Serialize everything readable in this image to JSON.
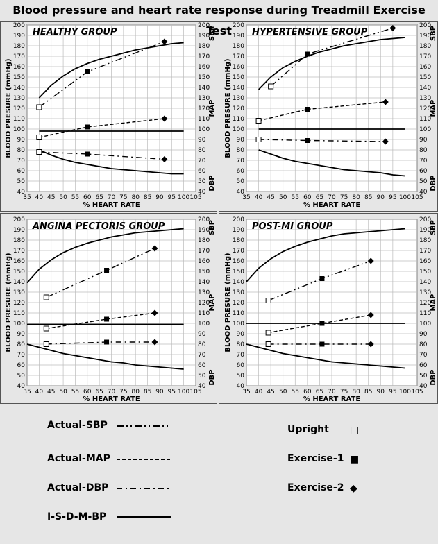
{
  "title": "Blood pressure and heart rate response during Treadmill Exercise Test",
  "colors": {
    "background": "#e6e6e6",
    "ink": "#000000"
  },
  "legend": {
    "lines": [
      {
        "label": "Actual-SBP",
        "dash": "dash-dot-dot"
      },
      {
        "label": "Actual-MAP",
        "dash": "dashed"
      },
      {
        "label": "Actual-DBP",
        "dash": "dash-dot"
      },
      {
        "label": "I-S-D-M-BP",
        "dash": "solid"
      }
    ],
    "markers": [
      {
        "label": "Upright",
        "symbol": "□"
      },
      {
        "label": "Exercise-1",
        "symbol": "■"
      },
      {
        "label": "Exercise-2",
        "symbol": "◆"
      }
    ]
  },
  "chart_data": [
    {
      "type": "line",
      "title": "HEALTHY GROUP",
      "xlabel": "% HEART RATE",
      "ylabel": "BLOOD PRESURE (mmHg)",
      "right_labels": [
        "SBP",
        "MAP",
        "DBP"
      ],
      "xlim": [
        35,
        105
      ],
      "ylim": [
        40,
        200
      ],
      "xticks": [
        35,
        40,
        45,
        50,
        55,
        60,
        65,
        70,
        75,
        80,
        85,
        90,
        95,
        100,
        105
      ],
      "yticks": [
        40,
        50,
        60,
        70,
        80,
        90,
        100,
        110,
        120,
        130,
        140,
        150,
        160,
        170,
        180,
        190,
        200
      ],
      "ideal": {
        "sbp": {
          "x": [
            40,
            45,
            50,
            55,
            60,
            65,
            70,
            75,
            80,
            85,
            90,
            95,
            100
          ],
          "y": [
            130,
            142,
            151,
            158,
            163,
            167,
            170,
            173,
            176,
            178,
            180,
            182,
            183
          ]
        },
        "map": {
          "x": [
            40,
            100
          ],
          "y": [
            98,
            98
          ]
        },
        "dbp": {
          "x": [
            40,
            45,
            50,
            55,
            60,
            65,
            70,
            75,
            80,
            85,
            90,
            95,
            100
          ],
          "y": [
            80,
            75,
            71,
            68,
            66,
            64,
            62,
            61,
            60,
            59,
            58,
            57,
            57
          ]
        }
      },
      "actual": {
        "sbp": {
          "x": [
            40,
            60,
            92
          ],
          "y": [
            121,
            155,
            184
          ]
        },
        "map": {
          "x": [
            40,
            60,
            92
          ],
          "y": [
            92,
            102,
            110
          ]
        },
        "dbp": {
          "x": [
            40,
            60,
            92
          ],
          "y": [
            78,
            76,
            71
          ]
        }
      }
    },
    {
      "type": "line",
      "title": "HYPERTENSIVE GROUP",
      "xlabel": "% HEART RATE",
      "ylabel": "BLOOD PRESURE (mmHg)",
      "right_labels": [
        "SBP",
        "MAP",
        "DBP"
      ],
      "xlim": [
        35,
        105
      ],
      "ylim": [
        40,
        200
      ],
      "xticks": [
        35,
        40,
        45,
        50,
        55,
        60,
        65,
        70,
        75,
        80,
        85,
        90,
        95,
        100,
        105
      ],
      "yticks": [
        40,
        50,
        60,
        70,
        80,
        90,
        100,
        110,
        120,
        130,
        140,
        150,
        160,
        170,
        180,
        190,
        200
      ],
      "ideal": {
        "sbp": {
          "x": [
            40,
            45,
            50,
            55,
            60,
            65,
            70,
            75,
            80,
            85,
            90,
            95,
            100
          ],
          "y": [
            138,
            150,
            159,
            165,
            170,
            174,
            177,
            180,
            182,
            184,
            186,
            187,
            188
          ]
        },
        "map": {
          "x": [
            40,
            100
          ],
          "y": [
            100,
            100
          ]
        },
        "dbp": {
          "x": [
            40,
            45,
            50,
            55,
            60,
            65,
            70,
            75,
            80,
            85,
            90,
            95,
            100
          ],
          "y": [
            80,
            76,
            72,
            69,
            67,
            65,
            63,
            61,
            60,
            59,
            58,
            56,
            55
          ]
        }
      },
      "actual": {
        "sbp": {
          "x": [
            45,
            60,
            95
          ],
          "y": [
            141,
            172,
            197
          ]
        },
        "map": {
          "x": [
            40,
            60,
            92
          ],
          "y": [
            108,
            119,
            126
          ]
        },
        "dbp": {
          "x": [
            40,
            60,
            92
          ],
          "y": [
            90,
            89,
            88
          ]
        }
      }
    },
    {
      "type": "line",
      "title": "ANGINA PECTORIS GROUP",
      "xlabel": "% HEART RATE",
      "ylabel": "BLOOD PRESURE (mmHg)",
      "right_labels": [
        "SBP",
        "MAP",
        "DBP"
      ],
      "xlim": [
        35,
        105
      ],
      "ylim": [
        40,
        200
      ],
      "xticks": [
        35,
        40,
        45,
        50,
        55,
        60,
        65,
        70,
        75,
        80,
        85,
        90,
        95,
        100,
        105
      ],
      "yticks": [
        40,
        50,
        60,
        70,
        80,
        90,
        100,
        110,
        120,
        130,
        140,
        150,
        160,
        170,
        180,
        190,
        200
      ],
      "ideal": {
        "sbp": {
          "x": [
            35,
            40,
            45,
            50,
            55,
            60,
            65,
            70,
            75,
            80,
            85,
            90,
            95,
            100
          ],
          "y": [
            139,
            152,
            161,
            168,
            173,
            177,
            180,
            183,
            185,
            187,
            188,
            189,
            190,
            191
          ]
        },
        "map": {
          "x": [
            35,
            100
          ],
          "y": [
            99,
            99
          ]
        },
        "dbp": {
          "x": [
            35,
            40,
            45,
            50,
            55,
            60,
            65,
            70,
            75,
            80,
            85,
            90,
            95,
            100
          ],
          "y": [
            80,
            77,
            74,
            71,
            69,
            67,
            65,
            63,
            62,
            60,
            59,
            58,
            57,
            56
          ]
        }
      },
      "actual": {
        "sbp": {
          "x": [
            43,
            68,
            88
          ],
          "y": [
            125,
            151,
            172
          ]
        },
        "map": {
          "x": [
            43,
            68,
            88
          ],
          "y": [
            95,
            104,
            110
          ]
        },
        "dbp": {
          "x": [
            43,
            68,
            88
          ],
          "y": [
            80,
            82,
            82
          ]
        }
      }
    },
    {
      "type": "line",
      "title": "POST-MI GROUP",
      "xlabel": "% HEART RATE",
      "ylabel": "BLOOD PRESURE (mmHg)",
      "right_labels": [
        "SBP",
        "MAP",
        "DBP"
      ],
      "xlim": [
        35,
        105
      ],
      "ylim": [
        40,
        200
      ],
      "xticks": [
        35,
        40,
        45,
        50,
        55,
        60,
        65,
        70,
        75,
        80,
        85,
        90,
        95,
        100,
        105
      ],
      "yticks": [
        40,
        50,
        60,
        70,
        80,
        90,
        100,
        110,
        120,
        130,
        140,
        150,
        160,
        170,
        180,
        190,
        200
      ],
      "ideal": {
        "sbp": {
          "x": [
            35,
            40,
            45,
            50,
            55,
            60,
            65,
            70,
            75,
            80,
            85,
            90,
            95,
            100
          ],
          "y": [
            140,
            153,
            162,
            169,
            174,
            178,
            181,
            184,
            186,
            187,
            188,
            189,
            190,
            191
          ]
        },
        "map": {
          "x": [
            35,
            100
          ],
          "y": [
            100,
            100
          ]
        },
        "dbp": {
          "x": [
            35,
            40,
            45,
            50,
            55,
            60,
            65,
            70,
            75,
            80,
            85,
            90,
            95,
            100
          ],
          "y": [
            80,
            77,
            74,
            71,
            69,
            67,
            65,
            63,
            62,
            61,
            60,
            59,
            58,
            57
          ]
        }
      },
      "actual": {
        "sbp": {
          "x": [
            44,
            66,
            86
          ],
          "y": [
            122,
            143,
            160
          ]
        },
        "map": {
          "x": [
            44,
            66,
            86
          ],
          "y": [
            91,
            100,
            108
          ]
        },
        "dbp": {
          "x": [
            44,
            66,
            86
          ],
          "y": [
            80,
            80,
            80
          ]
        }
      }
    }
  ]
}
